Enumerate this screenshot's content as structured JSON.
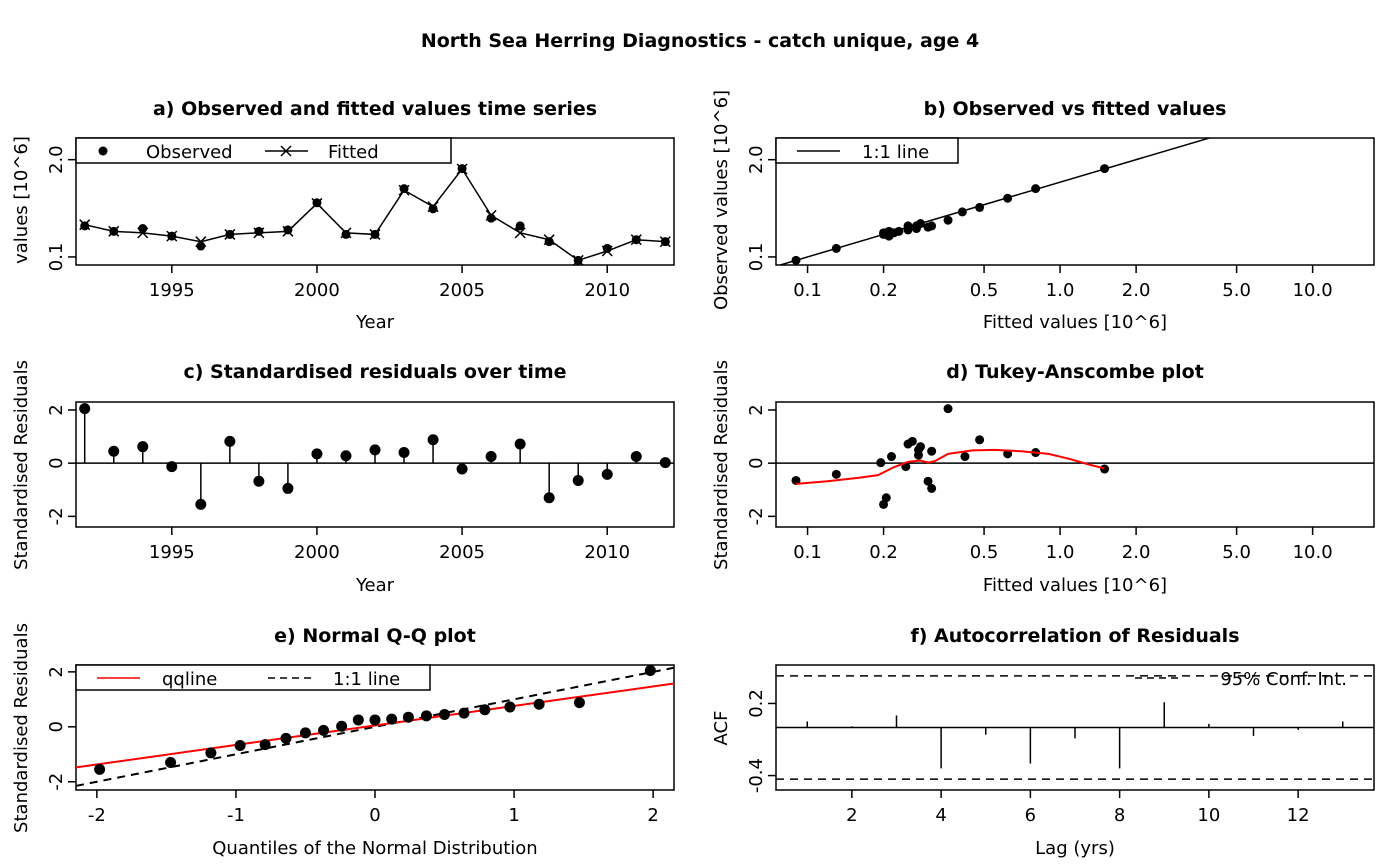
{
  "title": "North Sea Herring Diagnostics - catch unique, age 4",
  "colors": {
    "ink": "#000000",
    "red": "#ff0000"
  },
  "chart_data": [
    {
      "id": "a",
      "type": "line",
      "title": "a) Observed and fitted values time series",
      "xlabel": "Year",
      "ylabel": "values [10^6]",
      "log_y": true,
      "xlim": [
        1991.7,
        2012.3
      ],
      "ylim": [
        0.078,
        3.9
      ],
      "x_ticks": [
        1995,
        2000,
        2005,
        2010
      ],
      "y_ticks": [
        0.1,
        2.0
      ],
      "y_tick_labels": [
        "0.1",
        "2.0"
      ],
      "legend": [
        {
          "label": "Observed",
          "marker": "dot"
        },
        {
          "label": "Fitted",
          "marker": "cross-line"
        }
      ],
      "legend_position": "top-left",
      "x": [
        1992,
        1993,
        1994,
        1995,
        1996,
        1997,
        1998,
        1999,
        2000,
        2001,
        2002,
        2003,
        2004,
        2005,
        2006,
        2007,
        2008,
        2009,
        2010,
        2011,
        2012
      ],
      "series": [
        {
          "name": "Observed",
          "values": [
            0.26,
            0.22,
            0.24,
            0.19,
            0.14,
            0.2,
            0.22,
            0.23,
            0.53,
            0.2,
            0.2,
            0.82,
            0.44,
            1.52,
            0.33,
            0.26,
            0.16,
            0.09,
            0.13,
            0.17,
            0.16
          ]
        },
        {
          "name": "Fitted",
          "values": [
            0.27,
            0.22,
            0.21,
            0.19,
            0.16,
            0.2,
            0.21,
            0.22,
            0.52,
            0.21,
            0.2,
            0.78,
            0.47,
            1.5,
            0.36,
            0.21,
            0.17,
            0.09,
            0.12,
            0.17,
            0.16
          ]
        }
      ]
    },
    {
      "id": "b",
      "type": "scatter",
      "title": "b) Observed vs fitted values",
      "xlabel": "Fitted values [10^6]",
      "ylabel": "Observed values [10^6]",
      "log_x": true,
      "log_y": true,
      "xlim": [
        0.075,
        17.5
      ],
      "ylim": [
        0.078,
        3.9
      ],
      "x_ticks": [
        0.1,
        0.2,
        0.5,
        1.0,
        2.0,
        5.0,
        10.0
      ],
      "x_tick_labels": [
        "0.1",
        "0.2",
        "0.5",
        "1.0",
        "2.0",
        "5.0",
        "10.0"
      ],
      "y_ticks": [
        0.1,
        2.0
      ],
      "y_tick_labels": [
        "0.1",
        "2.0"
      ],
      "legend": [
        {
          "label": "1:1 line",
          "marker": "line"
        }
      ],
      "legend_position": "top-left",
      "points": [
        [
          0.09,
          0.09
        ],
        [
          0.13,
          0.13
        ],
        [
          0.2,
          0.2
        ],
        [
          0.21,
          0.19
        ],
        [
          0.22,
          0.21
        ],
        [
          0.23,
          0.22
        ],
        [
          0.25,
          0.23
        ],
        [
          0.25,
          0.26
        ],
        [
          0.27,
          0.24
        ],
        [
          0.27,
          0.26
        ],
        [
          0.28,
          0.28
        ],
        [
          0.3,
          0.25
        ],
        [
          0.31,
          0.26
        ],
        [
          0.36,
          0.31
        ],
        [
          0.41,
          0.4
        ],
        [
          0.48,
          0.46
        ],
        [
          0.62,
          0.61
        ],
        [
          0.8,
          0.82
        ],
        [
          1.5,
          1.52
        ],
        [
          0.21,
          0.22
        ],
        [
          0.2,
          0.21
        ]
      ]
    },
    {
      "id": "c",
      "type": "scatter",
      "title": "c) Standardised residuals over time",
      "xlabel": "Year",
      "ylabel": "Standardised Residuals",
      "xlim": [
        1991.7,
        2012.3
      ],
      "ylim": [
        -2.4,
        2.3
      ],
      "x_ticks": [
        1995,
        2000,
        2005,
        2010
      ],
      "y_ticks": [
        -2,
        0,
        2
      ],
      "x": [
        1992,
        1993,
        1994,
        1995,
        1996,
        1997,
        1998,
        1999,
        2000,
        2001,
        2002,
        2003,
        2004,
        2005,
        2006,
        2007,
        2008,
        2009,
        2010,
        2011,
        2012
      ],
      "values": [
        2.05,
        0.45,
        0.62,
        -0.13,
        -1.55,
        0.82,
        -0.68,
        -0.95,
        0.35,
        0.28,
        0.5,
        0.4,
        0.88,
        -0.22,
        0.25,
        0.72,
        -1.3,
        -0.65,
        -0.42,
        0.25,
        0.02
      ]
    },
    {
      "id": "d",
      "type": "scatter",
      "title": "d) Tukey-Anscombe plot",
      "xlabel": "Fitted values [10^6]",
      "ylabel": "Standardised Residuals",
      "log_x": true,
      "xlim": [
        0.075,
        17.5
      ],
      "ylim": [
        -2.4,
        2.3
      ],
      "x_ticks": [
        0.1,
        0.2,
        0.5,
        1.0,
        2.0,
        5.0,
        10.0
      ],
      "x_tick_labels": [
        "0.1",
        "0.2",
        "0.5",
        "1.0",
        "2.0",
        "5.0",
        "10.0"
      ],
      "y_ticks": [
        -2,
        0,
        2
      ],
      "points": [
        [
          0.09,
          -0.65
        ],
        [
          0.13,
          -0.42
        ],
        [
          0.195,
          0.02
        ],
        [
          0.2,
          -1.55
        ],
        [
          0.205,
          -1.3
        ],
        [
          0.215,
          0.25
        ],
        [
          0.245,
          -0.13
        ],
        [
          0.25,
          0.72
        ],
        [
          0.26,
          0.82
        ],
        [
          0.275,
          0.3
        ],
        [
          0.275,
          0.5
        ],
        [
          0.28,
          0.62
        ],
        [
          0.3,
          -0.68
        ],
        [
          0.31,
          -0.95
        ],
        [
          0.31,
          0.45
        ],
        [
          0.36,
          2.05
        ],
        [
          0.42,
          0.25
        ],
        [
          0.48,
          0.88
        ],
        [
          0.62,
          0.35
        ],
        [
          0.8,
          0.4
        ],
        [
          1.5,
          -0.22
        ]
      ],
      "smoother": [
        [
          0.09,
          -0.78
        ],
        [
          0.12,
          -0.68
        ],
        [
          0.16,
          -0.55
        ],
        [
          0.19,
          -0.45
        ],
        [
          0.22,
          -0.15
        ],
        [
          0.25,
          0.05
        ],
        [
          0.28,
          0.1
        ],
        [
          0.3,
          0.02
        ],
        [
          0.32,
          0.08
        ],
        [
          0.36,
          0.35
        ],
        [
          0.45,
          0.48
        ],
        [
          0.55,
          0.5
        ],
        [
          0.7,
          0.45
        ],
        [
          0.9,
          0.35
        ],
        [
          1.1,
          0.15
        ],
        [
          1.3,
          -0.05
        ],
        [
          1.5,
          -0.2
        ]
      ]
    },
    {
      "id": "e",
      "type": "scatter",
      "title": "e) Normal Q-Q plot",
      "xlabel": "Quantiles of the Normal Distribution",
      "ylabel": "Standardised Residuals",
      "xlim": [
        -2.15,
        2.15
      ],
      "ylim": [
        -2.3,
        2.25
      ],
      "x_ticks": [
        -2,
        -1,
        0,
        1,
        2
      ],
      "y_ticks": [
        -2,
        0,
        2
      ],
      "legend": [
        {
          "label": "qqline",
          "marker": "red-line"
        },
        {
          "label": "1:1 line",
          "marker": "dashed-line"
        }
      ],
      "legend_position": "top-left",
      "qqline": {
        "intercept": 0.05,
        "slope": 0.71
      },
      "points": [
        [
          -1.98,
          -1.55
        ],
        [
          -1.47,
          -1.3
        ],
        [
          -1.18,
          -0.95
        ],
        [
          -0.97,
          -0.68
        ],
        [
          -0.79,
          -0.65
        ],
        [
          -0.64,
          -0.42
        ],
        [
          -0.5,
          -0.22
        ],
        [
          -0.37,
          -0.13
        ],
        [
          -0.24,
          0.02
        ],
        [
          -0.12,
          0.25
        ],
        [
          0.0,
          0.25
        ],
        [
          0.12,
          0.28
        ],
        [
          0.24,
          0.35
        ],
        [
          0.37,
          0.4
        ],
        [
          0.5,
          0.45
        ],
        [
          0.64,
          0.5
        ],
        [
          0.79,
          0.62
        ],
        [
          0.97,
          0.72
        ],
        [
          1.18,
          0.82
        ],
        [
          1.47,
          0.88
        ],
        [
          1.98,
          2.05
        ]
      ]
    },
    {
      "id": "f",
      "type": "bar",
      "title": "f) Autocorrelation of Residuals",
      "xlabel": "Lag (yrs)",
      "ylabel": "ACF",
      "xlim": [
        0.3,
        13.7
      ],
      "ylim": [
        -0.52,
        0.52
      ],
      "x_ticks": [
        2,
        4,
        6,
        8,
        10,
        12
      ],
      "y_ticks": [
        -0.4,
        0.2
      ],
      "y_tick_labels": [
        "-0.4",
        "0.2"
      ],
      "conf_int": 0.43,
      "legend": [
        {
          "label": "95% Conf. Int.",
          "marker": "dashed-line"
        }
      ],
      "legend_position": "top-right",
      "lags": [
        1,
        2,
        3,
        4,
        5,
        6,
        7,
        8,
        9,
        10,
        11,
        12,
        13
      ],
      "values": [
        0.05,
        0.01,
        0.1,
        -0.34,
        -0.06,
        -0.3,
        -0.09,
        -0.34,
        0.21,
        0.03,
        -0.07,
        -0.02,
        0.05
      ]
    }
  ]
}
